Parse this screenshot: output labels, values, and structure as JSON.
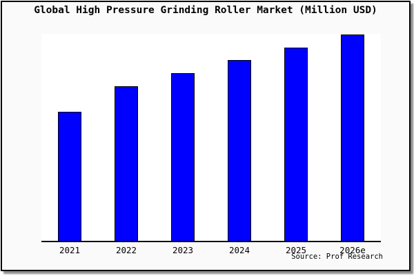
{
  "chart_data": {
    "type": "bar",
    "title": "Global High Pressure Grinding Roller Market (Million USD)",
    "categories": [
      "2021",
      "2022",
      "2023",
      "2024",
      "2025",
      "2026e"
    ],
    "values": [
      62.3,
      74.7,
      81.0,
      87.3,
      93.3,
      99.7
    ],
    "values_note": "Y axis is unlabeled in the image; values are relative bar heights in percent of plot-area height (market size index, 2026e = max).",
    "xlabel": "",
    "ylabel": "",
    "ylim": [
      0,
      100
    ],
    "grid": false,
    "legend": "none",
    "source_label": "Source: Prof Research",
    "colors": {
      "bar_fill": "#0000ff",
      "bar_border": "#000000",
      "plot_background": "#ffffff",
      "frame_background": "#fafafa",
      "frame_border": "#000000",
      "shadow": "#8f8f8f",
      "text": "#000000"
    }
  }
}
